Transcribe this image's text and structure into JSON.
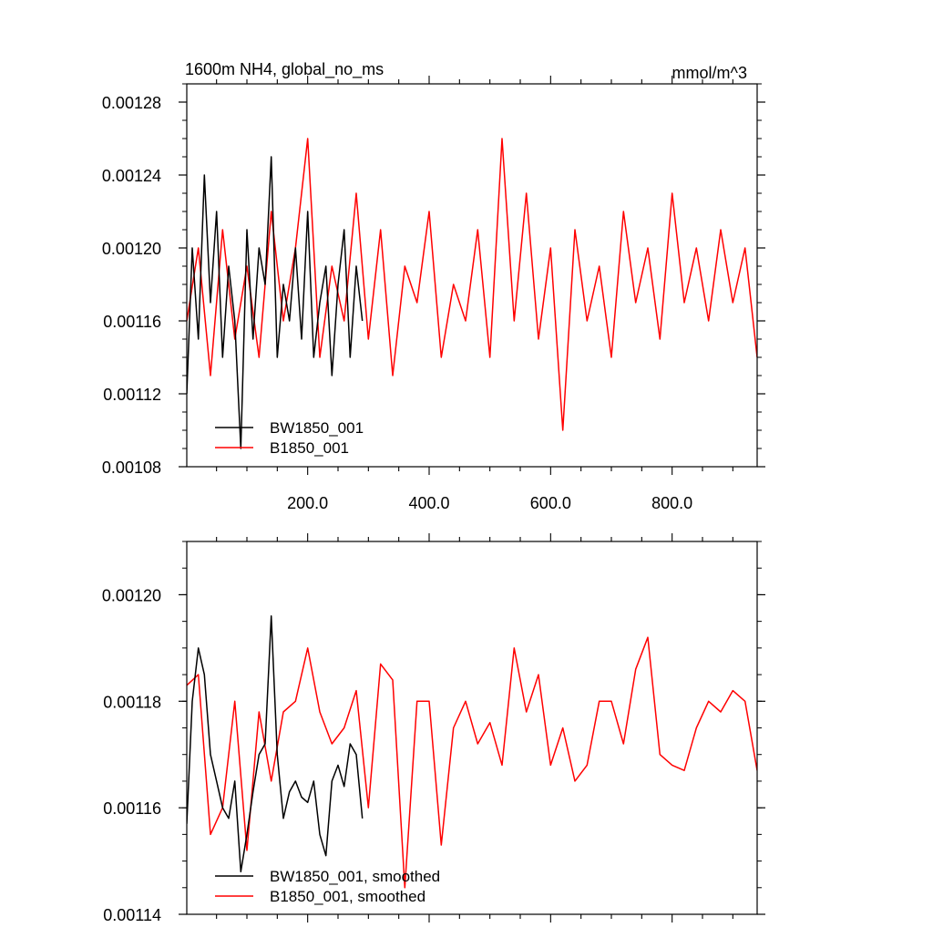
{
  "chart_data": [
    {
      "type": "line",
      "title": "1600m NH4, global_no_ms",
      "units": "mmol/m^3",
      "xlabel": "",
      "ylabel": "",
      "xlim": [
        1,
        940
      ],
      "ylim": [
        0.00108,
        0.00129
      ],
      "xticks": [
        {
          "value": 200,
          "label": "200.0"
        },
        {
          "value": 400,
          "label": "400.0"
        },
        {
          "value": 600,
          "label": "600.0"
        },
        {
          "value": 800,
          "label": "800.0"
        }
      ],
      "yticks": [
        {
          "value": 0.00108,
          "label": "0.00108"
        },
        {
          "value": 0.00112,
          "label": "0.00112"
        },
        {
          "value": 0.00116,
          "label": "0.00116"
        },
        {
          "value": 0.0012,
          "label": "0.00120"
        },
        {
          "value": 0.00124,
          "label": "0.00124"
        },
        {
          "value": 0.00128,
          "label": "0.00128"
        }
      ],
      "grid": false,
      "legend_position": "bottom-left",
      "series": [
        {
          "name": "BW1850_001",
          "color": "#000000",
          "x": [
            1,
            10,
            20,
            30,
            40,
            50,
            60,
            70,
            80,
            90,
            100,
            110,
            120,
            130,
            140,
            150,
            160,
            170,
            180,
            190,
            200,
            210,
            220,
            230,
            240,
            250,
            260,
            270,
            280,
            290
          ],
          "y": [
            0.00112,
            0.0012,
            0.00115,
            0.00124,
            0.00117,
            0.00122,
            0.00114,
            0.00119,
            0.00116,
            0.00109,
            0.00121,
            0.00115,
            0.0012,
            0.00118,
            0.00125,
            0.00114,
            0.00118,
            0.00116,
            0.0012,
            0.00115,
            0.00122,
            0.00114,
            0.00117,
            0.00119,
            0.00113,
            0.00118,
            0.00121,
            0.00114,
            0.00119,
            0.00116
          ]
        },
        {
          "name": "B1850_001",
          "color": "#ff0000",
          "x": [
            1,
            20,
            40,
            60,
            80,
            100,
            120,
            140,
            160,
            180,
            200,
            220,
            240,
            260,
            280,
            300,
            320,
            340,
            360,
            380,
            400,
            420,
            440,
            460,
            480,
            500,
            520,
            540,
            560,
            580,
            600,
            620,
            640,
            660,
            680,
            700,
            720,
            740,
            760,
            780,
            800,
            820,
            840,
            860,
            880,
            900,
            920,
            940
          ],
          "y": [
            0.00116,
            0.0012,
            0.00113,
            0.00121,
            0.00115,
            0.00119,
            0.00114,
            0.00122,
            0.00116,
            0.0012,
            0.00126,
            0.00114,
            0.00119,
            0.00116,
            0.00123,
            0.00115,
            0.00121,
            0.00113,
            0.00119,
            0.00117,
            0.00122,
            0.00114,
            0.00118,
            0.00116,
            0.00121,
            0.00114,
            0.00126,
            0.00116,
            0.00123,
            0.00115,
            0.0012,
            0.0011,
            0.00121,
            0.00116,
            0.00119,
            0.00114,
            0.00122,
            0.00117,
            0.0012,
            0.00115,
            0.00123,
            0.00117,
            0.0012,
            0.00116,
            0.00121,
            0.00117,
            0.0012,
            0.00114
          ]
        }
      ]
    },
    {
      "type": "line",
      "title": "",
      "xlabel": "",
      "ylabel": "",
      "xlim": [
        1,
        940
      ],
      "ylim": [
        0.00114,
        0.00121
      ],
      "xticks": [],
      "yticks": [
        {
          "value": 0.00114,
          "label": "0.00114"
        },
        {
          "value": 0.00116,
          "label": "0.00116"
        },
        {
          "value": 0.00118,
          "label": "0.00118"
        },
        {
          "value": 0.0012,
          "label": "0.00120"
        }
      ],
      "grid": false,
      "legend_position": "bottom-left",
      "series": [
        {
          "name": "BW1850_001, smoothed",
          "color": "#000000",
          "x": [
            1,
            10,
            20,
            30,
            40,
            50,
            60,
            70,
            80,
            90,
            100,
            110,
            120,
            130,
            140,
            150,
            160,
            170,
            180,
            190,
            200,
            210,
            220,
            230,
            240,
            250,
            260,
            270,
            280,
            290
          ],
          "y": [
            0.001157,
            0.00118,
            0.00119,
            0.001185,
            0.00117,
            0.001165,
            0.00116,
            0.001158,
            0.001165,
            0.001148,
            0.001155,
            0.001163,
            0.00117,
            0.001172,
            0.001196,
            0.00117,
            0.001158,
            0.001163,
            0.001165,
            0.001162,
            0.001161,
            0.001165,
            0.001155,
            0.001151,
            0.001165,
            0.001168,
            0.001164,
            0.001172,
            0.00117,
            0.001158
          ]
        },
        {
          "name": "B1850_001, smoothed",
          "color": "#ff0000",
          "x": [
            1,
            20,
            40,
            60,
            80,
            100,
            120,
            140,
            160,
            180,
            200,
            220,
            240,
            260,
            280,
            300,
            320,
            340,
            360,
            380,
            400,
            420,
            440,
            460,
            480,
            500,
            520,
            540,
            560,
            580,
            600,
            620,
            640,
            660,
            680,
            700,
            720,
            740,
            760,
            780,
            800,
            820,
            840,
            860,
            880,
            900,
            920,
            940
          ],
          "y": [
            0.001183,
            0.001185,
            0.001155,
            0.00116,
            0.00118,
            0.001152,
            0.001178,
            0.001165,
            0.001178,
            0.00118,
            0.00119,
            0.001178,
            0.001172,
            0.001175,
            0.001182,
            0.00116,
            0.001187,
            0.001184,
            0.001145,
            0.00118,
            0.00118,
            0.001153,
            0.001175,
            0.00118,
            0.001172,
            0.001176,
            0.001168,
            0.00119,
            0.001178,
            0.001185,
            0.001168,
            0.001175,
            0.001165,
            0.001168,
            0.00118,
            0.00118,
            0.001172,
            0.001186,
            0.001192,
            0.00117,
            0.001168,
            0.001167,
            0.001175,
            0.00118,
            0.001178,
            0.001182,
            0.00118,
            0.001167
          ]
        }
      ]
    }
  ]
}
